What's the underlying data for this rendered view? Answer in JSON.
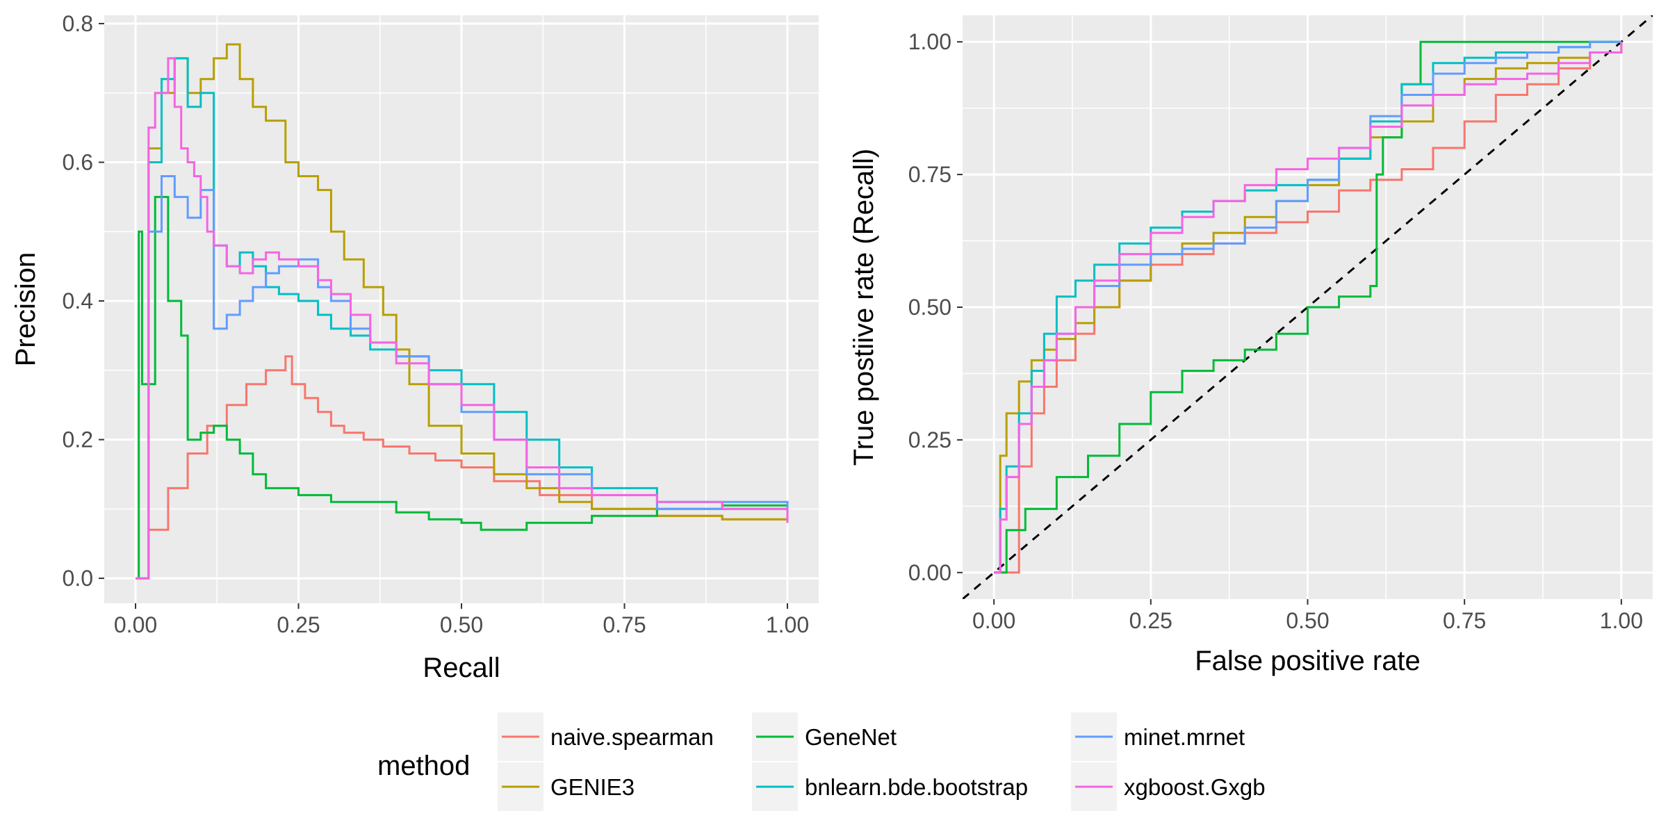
{
  "legend": {
    "title": "method",
    "position": "bottom",
    "items": [
      {
        "name": "naive.spearman",
        "color": "#F8766D"
      },
      {
        "name": "GENIE3",
        "color": "#B79F00"
      },
      {
        "name": "GeneNet",
        "color": "#00BA38"
      },
      {
        "name": "bnlearn.bde.bootstrap",
        "color": "#00BFC4"
      },
      {
        "name": "minet.mrnet",
        "color": "#619CFF"
      },
      {
        "name": "xgboost.Gxgb",
        "color": "#F564E3"
      }
    ]
  },
  "chart_data": [
    {
      "type": "line",
      "step": true,
      "xlabel": "Recall",
      "ylabel": "Precision",
      "xlim": [
        -0.048,
        1.048
      ],
      "ylim": [
        -0.036,
        0.812
      ],
      "xticks": [
        0,
        0.25,
        0.5,
        0.75,
        1
      ],
      "xtick_labels": [
        "0.00",
        "0.25",
        "0.50",
        "0.75",
        "1.00"
      ],
      "yticks": [
        0,
        0.2,
        0.4,
        0.6,
        0.8
      ],
      "ytick_labels": [
        "0.0",
        "0.2",
        "0.4",
        "0.6",
        "0.8"
      ],
      "grid": true,
      "series": [
        {
          "name": "naive.spearman",
          "color": "#F8766D",
          "x": [
            0,
            0.02,
            0.05,
            0.08,
            0.11,
            0.14,
            0.17,
            0.2,
            0.23,
            0.24,
            0.26,
            0.28,
            0.3,
            0.32,
            0.35,
            0.38,
            0.42,
            0.46,
            0.5,
            0.55,
            0.62,
            0.7,
            0.8,
            0.9,
            1.0
          ],
          "y": [
            0,
            0.07,
            0.13,
            0.18,
            0.22,
            0.25,
            0.28,
            0.3,
            0.32,
            0.28,
            0.26,
            0.24,
            0.22,
            0.21,
            0.2,
            0.19,
            0.18,
            0.17,
            0.16,
            0.14,
            0.12,
            0.1,
            0.09,
            0.085,
            0.08
          ]
        },
        {
          "name": "GENIE3",
          "color": "#B79F00",
          "x": [
            0,
            0.02,
            0.04,
            0.06,
            0.08,
            0.1,
            0.12,
            0.14,
            0.16,
            0.18,
            0.2,
            0.23,
            0.25,
            0.28,
            0.3,
            0.32,
            0.35,
            0.38,
            0.4,
            0.42,
            0.45,
            0.5,
            0.55,
            0.6,
            0.65,
            0.7,
            0.8,
            0.9,
            1.0
          ],
          "y": [
            0,
            0.62,
            0.7,
            0.75,
            0.7,
            0.72,
            0.75,
            0.77,
            0.72,
            0.68,
            0.66,
            0.6,
            0.58,
            0.56,
            0.5,
            0.46,
            0.42,
            0.38,
            0.33,
            0.28,
            0.22,
            0.18,
            0.15,
            0.13,
            0.11,
            0.1,
            0.09,
            0.085,
            0.08
          ]
        },
        {
          "name": "GeneNet",
          "color": "#00BA38",
          "x": [
            0,
            0.005,
            0.01,
            0.03,
            0.05,
            0.07,
            0.08,
            0.1,
            0.12,
            0.14,
            0.16,
            0.18,
            0.2,
            0.25,
            0.3,
            0.35,
            0.4,
            0.45,
            0.5,
            0.53,
            0.6,
            0.7,
            0.8,
            0.9,
            1.0
          ],
          "y": [
            0,
            0.5,
            0.28,
            0.55,
            0.4,
            0.35,
            0.2,
            0.21,
            0.22,
            0.2,
            0.18,
            0.15,
            0.13,
            0.12,
            0.11,
            0.11,
            0.095,
            0.085,
            0.08,
            0.07,
            0.08,
            0.09,
            0.1,
            0.105,
            0.11
          ]
        },
        {
          "name": "bnlearn.bde.bootstrap",
          "color": "#00BFC4",
          "x": [
            0,
            0.02,
            0.04,
            0.06,
            0.08,
            0.1,
            0.12,
            0.14,
            0.16,
            0.18,
            0.2,
            0.22,
            0.25,
            0.28,
            0.3,
            0.33,
            0.36,
            0.4,
            0.45,
            0.5,
            0.55,
            0.6,
            0.65,
            0.7,
            0.8,
            0.9,
            1.0
          ],
          "y": [
            0,
            0.6,
            0.72,
            0.75,
            0.68,
            0.7,
            0.48,
            0.45,
            0.47,
            0.45,
            0.42,
            0.41,
            0.4,
            0.38,
            0.36,
            0.35,
            0.33,
            0.32,
            0.3,
            0.28,
            0.24,
            0.2,
            0.16,
            0.13,
            0.11,
            0.1,
            0.08
          ]
        },
        {
          "name": "minet.mrnet",
          "color": "#619CFF",
          "x": [
            0,
            0.02,
            0.04,
            0.06,
            0.08,
            0.1,
            0.12,
            0.14,
            0.16,
            0.18,
            0.2,
            0.22,
            0.25,
            0.28,
            0.3,
            0.33,
            0.36,
            0.4,
            0.45,
            0.5,
            0.55,
            0.6,
            0.7,
            0.8,
            0.9,
            1.0
          ],
          "y": [
            0,
            0.5,
            0.58,
            0.55,
            0.52,
            0.56,
            0.36,
            0.38,
            0.4,
            0.42,
            0.44,
            0.45,
            0.46,
            0.42,
            0.4,
            0.36,
            0.34,
            0.32,
            0.28,
            0.24,
            0.2,
            0.15,
            0.12,
            0.1,
            0.11,
            0.08
          ]
        },
        {
          "name": "xgboost.Gxgb",
          "color": "#F564E3",
          "x": [
            0,
            0.02,
            0.03,
            0.05,
            0.06,
            0.07,
            0.08,
            0.09,
            0.1,
            0.11,
            0.12,
            0.14,
            0.16,
            0.18,
            0.2,
            0.22,
            0.25,
            0.28,
            0.3,
            0.33,
            0.36,
            0.4,
            0.45,
            0.5,
            0.55,
            0.6,
            0.65,
            0.7,
            0.8,
            0.9,
            1.0
          ],
          "y": [
            0,
            0.65,
            0.7,
            0.75,
            0.68,
            0.62,
            0.6,
            0.58,
            0.55,
            0.5,
            0.48,
            0.45,
            0.44,
            0.46,
            0.47,
            0.46,
            0.45,
            0.43,
            0.41,
            0.38,
            0.34,
            0.31,
            0.28,
            0.25,
            0.2,
            0.16,
            0.13,
            0.12,
            0.11,
            0.1,
            0.08
          ]
        }
      ]
    },
    {
      "type": "line",
      "step": true,
      "xlabel": "False positive rate",
      "ylabel": "True postiive rate (Recall)",
      "xlim": [
        -0.05,
        1.05
      ],
      "ylim": [
        -0.05,
        1.05
      ],
      "xticks": [
        0,
        0.25,
        0.5,
        0.75,
        1
      ],
      "xtick_labels": [
        "0.00",
        "0.25",
        "0.50",
        "0.75",
        "1.00"
      ],
      "yticks": [
        0,
        0.25,
        0.5,
        0.75,
        1
      ],
      "ytick_labels": [
        "0.00",
        "0.25",
        "0.50",
        "0.75",
        "1.00"
      ],
      "grid": true,
      "reference_line": {
        "from": [
          -0.05,
          -0.05
        ],
        "to": [
          1.05,
          1.05
        ],
        "style": "dashed",
        "color": "#000000"
      },
      "series": [
        {
          "name": "naive.spearman",
          "color": "#F8766D",
          "x": [
            0,
            0.03,
            0.04,
            0.06,
            0.08,
            0.1,
            0.13,
            0.16,
            0.2,
            0.25,
            0.3,
            0.35,
            0.4,
            0.45,
            0.5,
            0.55,
            0.6,
            0.65,
            0.7,
            0.75,
            0.8,
            0.85,
            0.9,
            0.95,
            1.0
          ],
          "y": [
            0,
            0.0,
            0.2,
            0.3,
            0.35,
            0.4,
            0.45,
            0.5,
            0.55,
            0.58,
            0.6,
            0.62,
            0.64,
            0.66,
            0.68,
            0.72,
            0.74,
            0.76,
            0.8,
            0.85,
            0.9,
            0.92,
            0.95,
            0.98,
            1.0
          ]
        },
        {
          "name": "GENIE3",
          "color": "#B79F00",
          "x": [
            0,
            0.01,
            0.02,
            0.04,
            0.06,
            0.08,
            0.1,
            0.13,
            0.16,
            0.2,
            0.25,
            0.3,
            0.35,
            0.4,
            0.45,
            0.5,
            0.55,
            0.6,
            0.65,
            0.7,
            0.75,
            0.8,
            0.85,
            0.9,
            0.95,
            1.0
          ],
          "y": [
            0,
            0.22,
            0.3,
            0.36,
            0.4,
            0.42,
            0.44,
            0.47,
            0.5,
            0.55,
            0.6,
            0.62,
            0.64,
            0.67,
            0.7,
            0.73,
            0.78,
            0.82,
            0.85,
            0.9,
            0.93,
            0.95,
            0.96,
            0.97,
            0.98,
            1.0
          ]
        },
        {
          "name": "GeneNet",
          "color": "#00BA38",
          "x": [
            0,
            0.02,
            0.05,
            0.1,
            0.15,
            0.2,
            0.25,
            0.3,
            0.35,
            0.4,
            0.45,
            0.5,
            0.55,
            0.6,
            0.61,
            0.62,
            0.65,
            0.68,
            0.7,
            0.75,
            0.8,
            0.85,
            0.9,
            0.95,
            1.0
          ],
          "y": [
            0,
            0.08,
            0.12,
            0.18,
            0.22,
            0.28,
            0.34,
            0.38,
            0.4,
            0.42,
            0.45,
            0.5,
            0.52,
            0.54,
            0.75,
            0.82,
            0.92,
            1.0,
            1.0,
            1.0,
            1.0,
            1.0,
            1.0,
            1.0,
            1.0
          ]
        },
        {
          "name": "bnlearn.bde.bootstrap",
          "color": "#00BFC4",
          "x": [
            0,
            0.01,
            0.02,
            0.04,
            0.06,
            0.08,
            0.1,
            0.13,
            0.16,
            0.2,
            0.25,
            0.3,
            0.35,
            0.4,
            0.45,
            0.5,
            0.55,
            0.6,
            0.65,
            0.7,
            0.75,
            0.8,
            0.85,
            0.9,
            0.95,
            1.0
          ],
          "y": [
            0,
            0.12,
            0.2,
            0.3,
            0.38,
            0.45,
            0.52,
            0.55,
            0.58,
            0.62,
            0.65,
            0.68,
            0.7,
            0.72,
            0.73,
            0.74,
            0.78,
            0.85,
            0.92,
            0.96,
            0.97,
            0.98,
            0.98,
            0.99,
            1.0,
            1.0
          ]
        },
        {
          "name": "minet.mrnet",
          "color": "#619CFF",
          "x": [
            0,
            0.01,
            0.02,
            0.04,
            0.06,
            0.08,
            0.1,
            0.13,
            0.16,
            0.2,
            0.25,
            0.3,
            0.35,
            0.4,
            0.45,
            0.5,
            0.55,
            0.6,
            0.65,
            0.7,
            0.75,
            0.8,
            0.85,
            0.9,
            0.95,
            1.0
          ],
          "y": [
            0,
            0.1,
            0.18,
            0.28,
            0.35,
            0.4,
            0.45,
            0.5,
            0.54,
            0.58,
            0.6,
            0.61,
            0.62,
            0.65,
            0.7,
            0.74,
            0.8,
            0.86,
            0.9,
            0.94,
            0.96,
            0.97,
            0.98,
            0.99,
            1.0,
            1.0
          ]
        },
        {
          "name": "xgboost.Gxgb",
          "color": "#F564E3",
          "x": [
            0,
            0.01,
            0.02,
            0.04,
            0.06,
            0.08,
            0.1,
            0.13,
            0.16,
            0.2,
            0.25,
            0.3,
            0.35,
            0.4,
            0.45,
            0.5,
            0.55,
            0.6,
            0.65,
            0.7,
            0.75,
            0.8,
            0.85,
            0.9,
            0.95,
            1.0
          ],
          "y": [
            0,
            0.1,
            0.18,
            0.28,
            0.35,
            0.4,
            0.45,
            0.5,
            0.55,
            0.6,
            0.64,
            0.67,
            0.7,
            0.73,
            0.76,
            0.78,
            0.8,
            0.84,
            0.88,
            0.9,
            0.92,
            0.93,
            0.94,
            0.96,
            0.98,
            1.0
          ]
        }
      ]
    }
  ]
}
